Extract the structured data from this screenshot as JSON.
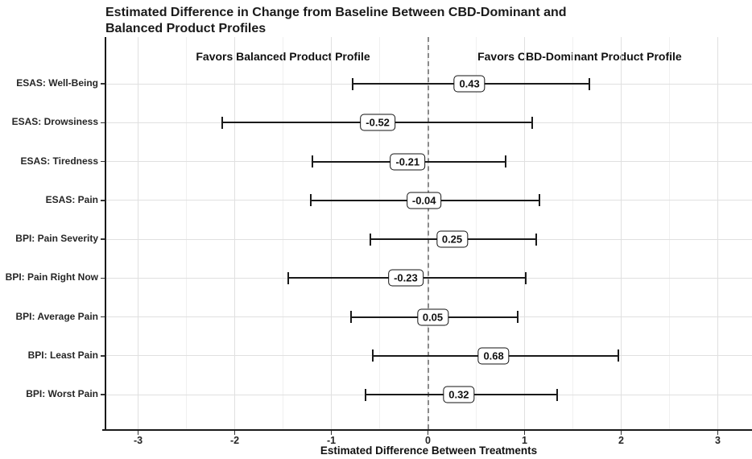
{
  "title": {
    "line1": "Estimated Difference in Change from Baseline Between CBD-Dominant and",
    "line2": "Balanced Product Profiles"
  },
  "chart_data": {
    "type": "scatter",
    "subtype": "horizontal-forest-plot-with-error-bars",
    "title": "Estimated Difference in Change from Baseline Between CBD-Dominant and Balanced Product Profiles",
    "xlabel": "Estimated Difference Between Treatments",
    "ylabel": "",
    "xlim": [
      -3.35,
      3.35
    ],
    "xticks": [
      -3,
      -2,
      -1,
      0,
      1,
      2,
      3
    ],
    "minor_grid_step": 0.5,
    "grid": true,
    "legend": "none",
    "reference_line": {
      "x": 0,
      "style": "dashed"
    },
    "annotations": [
      {
        "text": "Favors Balanced Product Profile",
        "x": -1.5
      },
      {
        "text": "Favors CBD-Dominant Product Profile",
        "x": 1.57
      }
    ],
    "categories": [
      "ESAS: Well-Being",
      "ESAS: Drowsiness",
      "ESAS: Tiredness",
      "ESAS: Pain",
      "BPI: Pain Severity",
      "BPI: Pain Right Now",
      "BPI: Average Pain",
      "BPI: Least Pain",
      "BPI: Worst Pain"
    ],
    "values": [
      0.43,
      -0.52,
      -0.21,
      -0.04,
      0.25,
      -0.23,
      0.05,
      0.68,
      0.32
    ],
    "ci_low": [
      -0.78,
      -2.13,
      -1.2,
      -1.21,
      -0.6,
      -1.45,
      -0.8,
      -0.57,
      -0.65
    ],
    "ci_high": [
      1.67,
      1.08,
      0.8,
      1.15,
      1.12,
      1.01,
      0.93,
      1.97,
      1.34
    ],
    "value_labels": [
      "0.43",
      "-0.52",
      "-0.21",
      "-0.04",
      "0.25",
      "-0.23",
      "0.05",
      "0.68",
      "0.32"
    ]
  },
  "colors": {
    "background": "#ffffff",
    "text": "#1a1a1a",
    "axis_line": "#1a1a1a",
    "grid_major": "#e0e0e0",
    "grid_minor": "#f0f0f0",
    "error_bar": "#1a1a1a",
    "reference_line": "#8a8a8a",
    "label_box_fill": "#ffffff",
    "label_box_border": "#111111"
  }
}
